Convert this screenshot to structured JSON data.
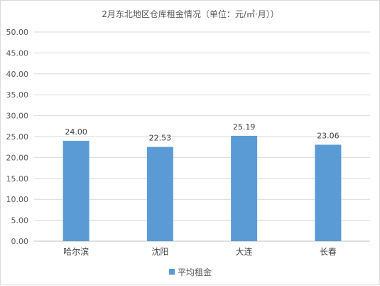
{
  "chart_data": {
    "type": "bar",
    "title": "2月东北地区仓库租金情况（单位：元/㎡·月））",
    "categories": [
      "哈尔滨",
      "沈阳",
      "大连",
      "长春"
    ],
    "series": [
      {
        "name": "平均租金",
        "values": [
          24.0,
          22.53,
          25.19,
          23.06
        ],
        "color": "#5b9bd5"
      }
    ],
    "data_labels": [
      "24.00",
      "22.53",
      "25.19",
      "23.06"
    ],
    "y_ticks": [
      "0.00",
      "5.00",
      "10.00",
      "15.00",
      "20.00",
      "25.00",
      "30.00",
      "35.00",
      "40.00",
      "45.00",
      "50.00"
    ],
    "ylim": [
      0,
      50
    ],
    "grid": true,
    "legend": "bottom"
  }
}
